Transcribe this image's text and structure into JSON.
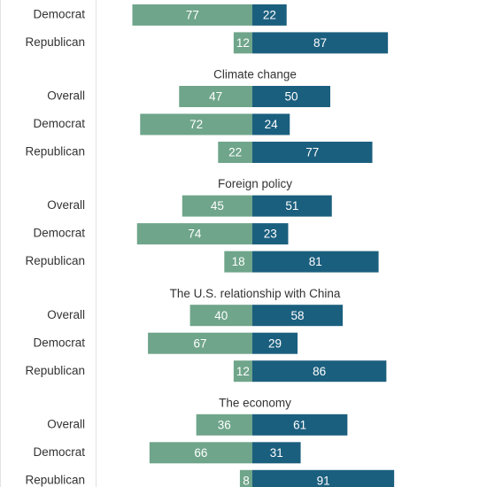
{
  "chart_data": {
    "type": "diverging-bar",
    "colors": [
      "#6fa58a",
      "#1b5f7e"
    ],
    "groups": [
      {
        "rows": [
          {
            "label": "Democrat",
            "values": [
              77,
              22
            ]
          },
          {
            "label": "Republican",
            "values": [
              12,
              87
            ]
          }
        ]
      },
      {
        "title": "Climate change",
        "rows": [
          {
            "label": "Overall",
            "values": [
              47,
              50
            ]
          },
          {
            "label": "Democrat",
            "values": [
              72,
              24
            ]
          },
          {
            "label": "Republican",
            "values": [
              22,
              77
            ]
          }
        ]
      },
      {
        "title": "Foreign policy",
        "rows": [
          {
            "label": "Overall",
            "values": [
              45,
              51
            ]
          },
          {
            "label": "Democrat",
            "values": [
              74,
              23
            ]
          },
          {
            "label": "Republican",
            "values": [
              18,
              81
            ]
          }
        ]
      },
      {
        "title": "The U.S. relationship with China",
        "rows": [
          {
            "label": "Overall",
            "values": [
              40,
              58
            ]
          },
          {
            "label": "Democrat",
            "values": [
              67,
              29
            ]
          },
          {
            "label": "Republican",
            "values": [
              12,
              86
            ]
          }
        ]
      },
      {
        "title": "The economy",
        "rows": [
          {
            "label": "Overall",
            "values": [
              36,
              61
            ]
          },
          {
            "label": "Democrat",
            "values": [
              66,
              31
            ]
          },
          {
            "label": "Republican",
            "values": [
              8,
              91
            ]
          }
        ]
      }
    ]
  }
}
